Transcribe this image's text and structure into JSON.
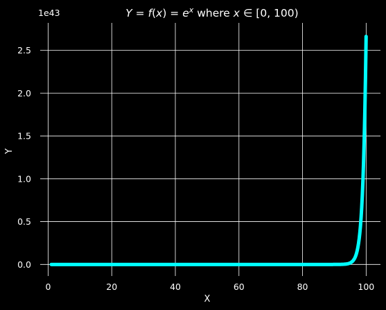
{
  "chart_data": {
    "type": "line",
    "title": "Y = f(x) = e^x where x ∈ [0, 100)",
    "title_parts": {
      "lhs": "Y",
      "eq1": " = ",
      "fn": "f",
      "paren_open": "(",
      "var": "x",
      "paren_close": ")",
      "eq2": " = ",
      "base": "e",
      "exp": "x",
      "where": " where ",
      "var2": "x",
      "member": " ∈ ",
      "interval": "[0, 100)"
    },
    "xlabel": "X",
    "ylabel": "Y",
    "y_scale_factor_label": "1e43",
    "y_scale_factor": 1e+43,
    "xlim": [
      -2.5,
      104.5
    ],
    "ylim": [
      -0.135,
      2.82
    ],
    "x_ticks": [
      0,
      20,
      40,
      60,
      80,
      100
    ],
    "x_tick_labels": [
      "0",
      "20",
      "40",
      "60",
      "80",
      "100"
    ],
    "y_ticks": [
      0.0,
      0.5,
      1.0,
      1.5,
      2.0,
      2.5
    ],
    "y_tick_labels": [
      "0.0",
      "0.5",
      "1.0",
      "1.5",
      "2.0",
      "2.5"
    ],
    "grid": true,
    "series": [
      {
        "function": "exp(x)",
        "x_start": 1,
        "x_end": 99.99,
        "color": "#00ffff"
      }
    ]
  },
  "colors": {
    "background": "#000000",
    "foreground": "#ffffff",
    "line": "#00ffff"
  }
}
